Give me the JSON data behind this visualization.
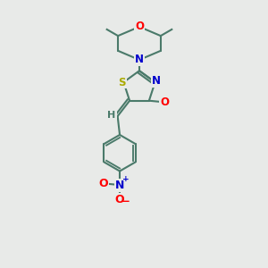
{
  "background_color": "#e8eae8",
  "bond_color": "#4a7a6a",
  "bond_width": 1.5,
  "atom_colors": {
    "O": "#ff0000",
    "N": "#0000cc",
    "S": "#aaaa00",
    "C": "#4a7a6a",
    "H": "#4a7a6a"
  },
  "font_size": 8.5,
  "fig_width": 3.0,
  "fig_height": 3.0,
  "dpi": 100,
  "xlim": [
    0,
    10
  ],
  "ylim": [
    0,
    10
  ]
}
